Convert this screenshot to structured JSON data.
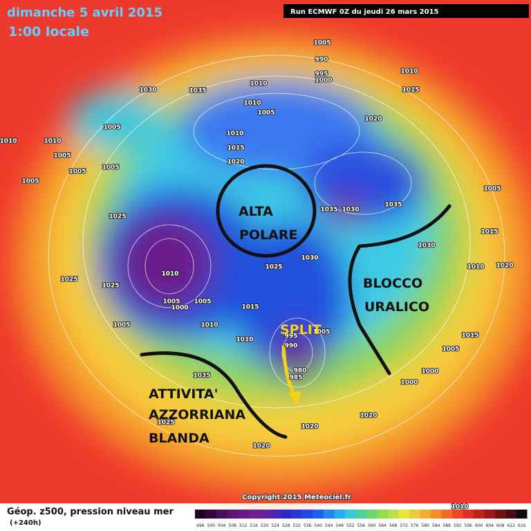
{
  "header": {
    "date": "dimanche 5 avril 2015",
    "time": "1:00 locale",
    "run": "Run ECMWF 0Z du jeudi 26 mars 2015"
  },
  "annotations": {
    "alta": "ALTA",
    "polare": "POLARE",
    "blocco": "BLOCCO",
    "uralico": "URALICO",
    "split": "SPLIT",
    "attivita": "ATTIVITA'",
    "azzorriana": "AZZORRIANA",
    "blanda": "BLANDA"
  },
  "isobars": [
    1005,
    990,
    995,
    1000,
    1010,
    1030,
    1035,
    1010,
    1015,
    1010,
    1005,
    1005,
    1020,
    1010,
    1010,
    1010,
    1015,
    1020,
    1005,
    1005,
    1005,
    1005,
    1035,
    1030,
    1035,
    1025,
    1005,
    1030,
    1025,
    1030,
    1025,
    1025,
    1010,
    1005,
    1005,
    1000,
    1015,
    1010,
    1005,
    1010,
    1005,
    995,
    990,
    980,
    985,
    1035,
    1000,
    1000,
    1020,
    1020,
    1025,
    1020,
    1005,
    1015,
    1015,
    1020,
    1010,
    1010
  ],
  "footer": {
    "title": "Géop. z500, pression niveau mer",
    "forecast": "(+240h)",
    "copyright": "Copyright 2015 Meteociel.fr"
  },
  "legend": {
    "levels": [
      496,
      500,
      504,
      508,
      512,
      516,
      520,
      524,
      528,
      532,
      536,
      540,
      544,
      548,
      552,
      556,
      560,
      564,
      568,
      572,
      576,
      580,
      584,
      588,
      592,
      596,
      600,
      604,
      608,
      612,
      616
    ]
  }
}
